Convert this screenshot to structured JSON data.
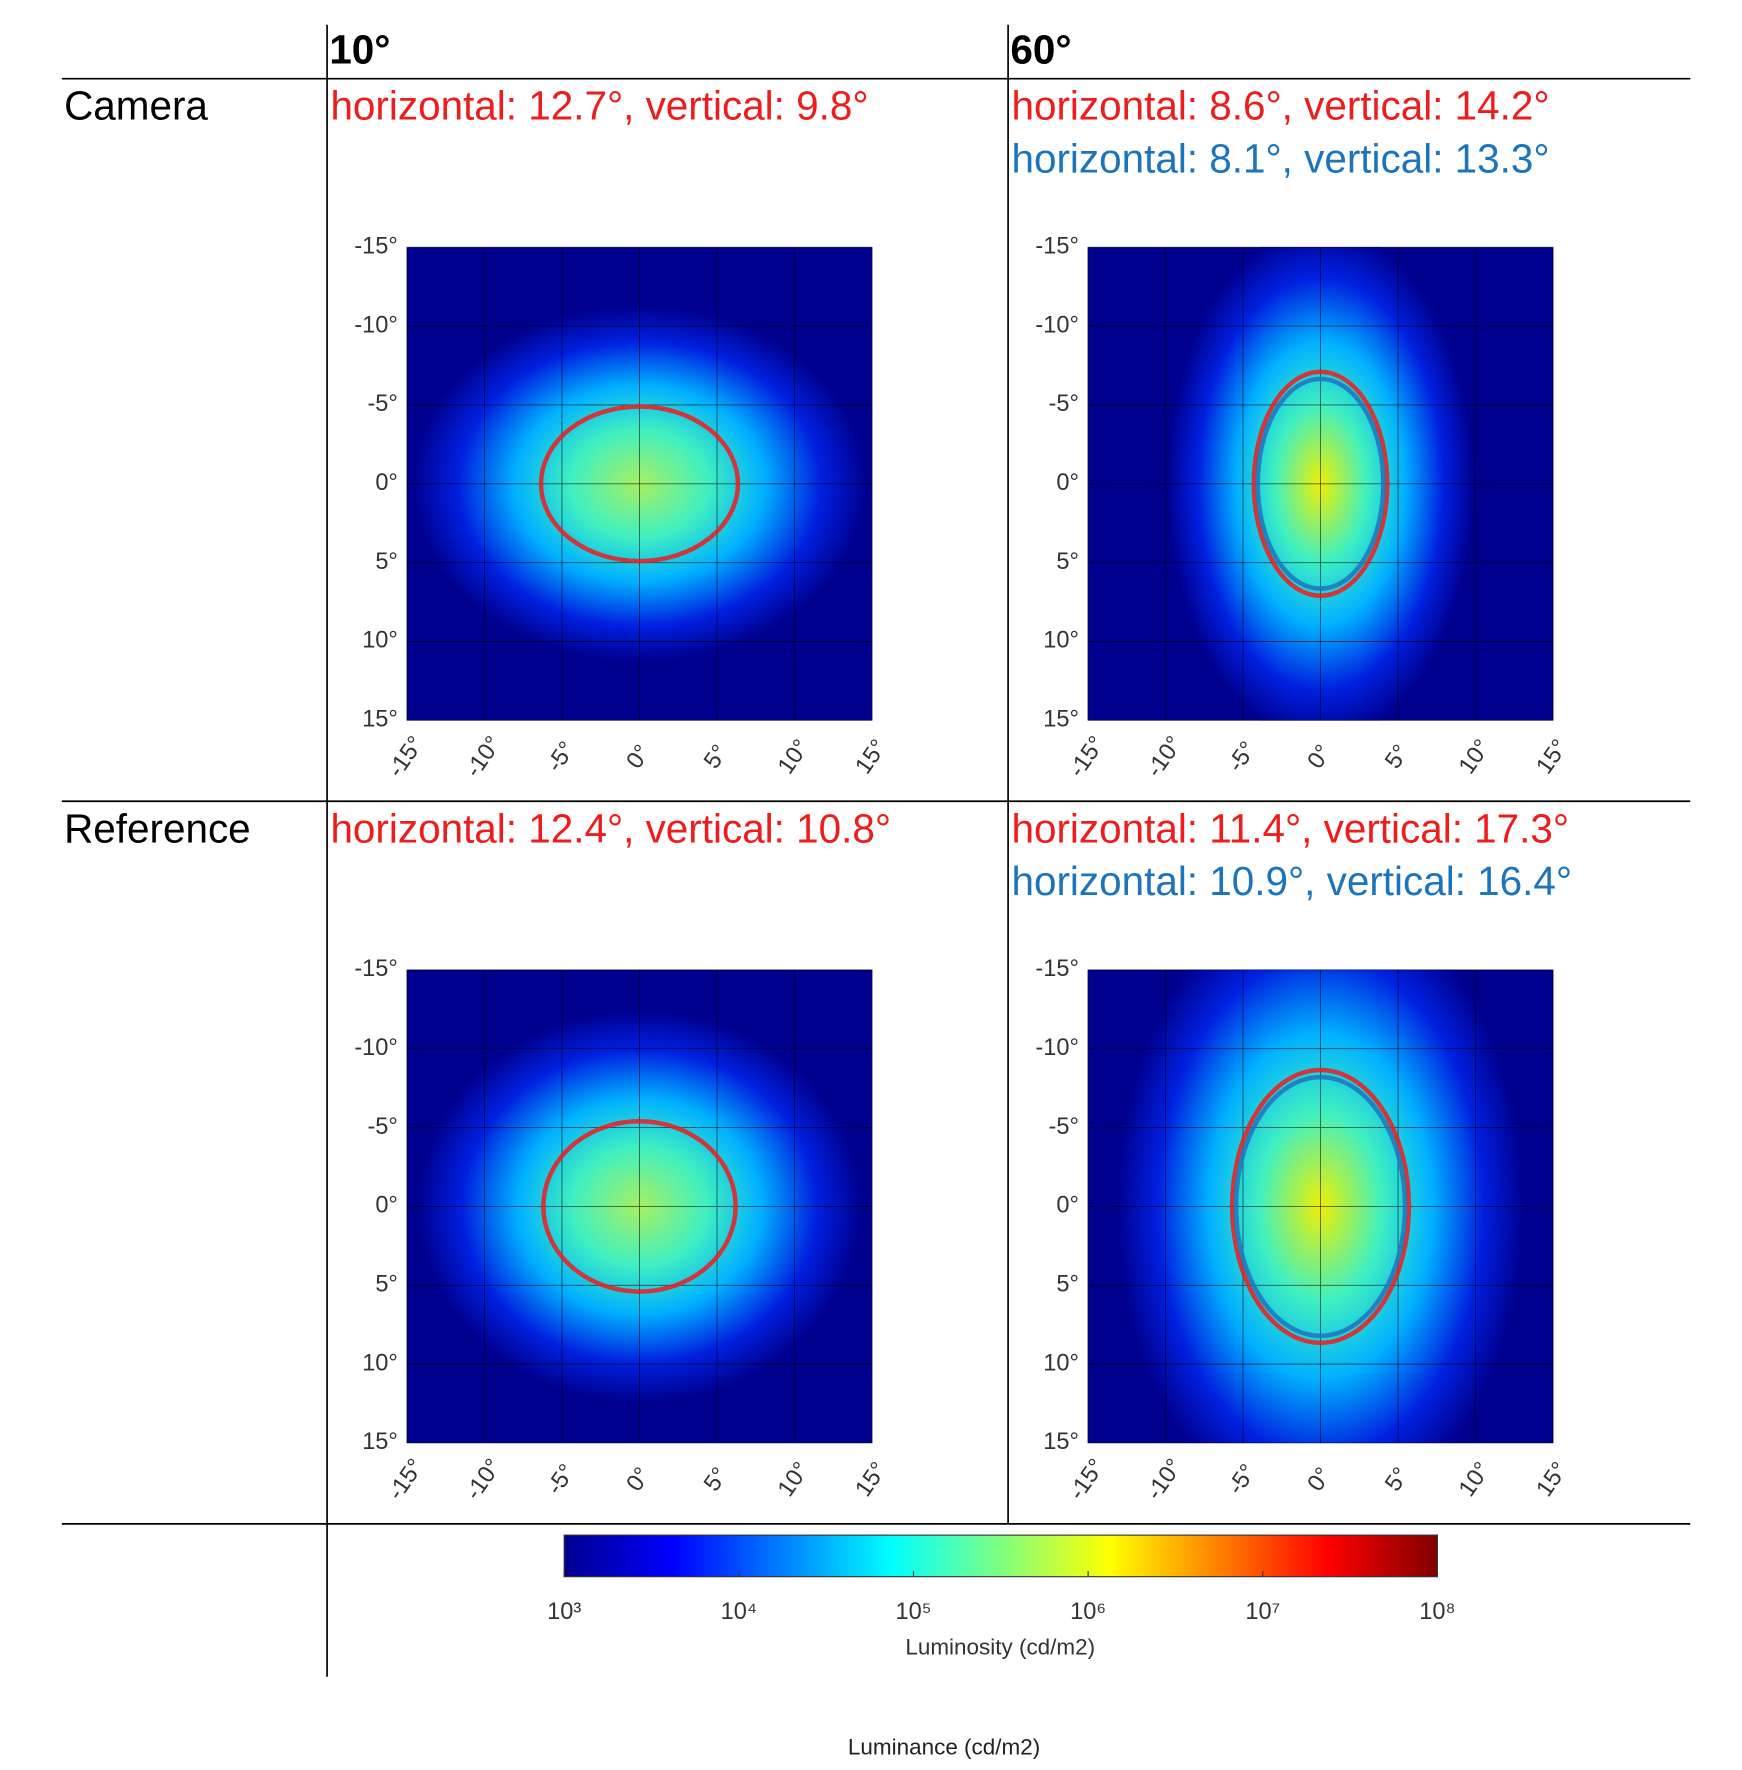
{
  "header": {
    "columns": [
      "10°",
      "60°"
    ]
  },
  "rows": [
    {
      "label": "Camera",
      "cells": [
        {
          "annotations": [
            {
              "text": "horizontal: 12.7°, vertical: 9.8°",
              "horizontal": 12.7,
              "vertical": 9.8,
              "color": "#ee1c1c"
            }
          ]
        },
        {
          "annotations": [
            {
              "text": "horizontal: 8.6°, vertical: 14.2°",
              "horizontal": 8.6,
              "vertical": 14.2,
              "color": "#ee1c1c"
            },
            {
              "text": "horizontal: 8.1°, vertical: 13.3°",
              "horizontal": 8.1,
              "vertical": 13.3,
              "color": "#1c75bc"
            }
          ]
        }
      ]
    },
    {
      "label": "Reference",
      "cells": [
        {
          "annotations": [
            {
              "text": "horizontal: 12.4°, vertical: 10.8°",
              "horizontal": 12.4,
              "vertical": 10.8,
              "color": "#ee1c1c"
            }
          ]
        },
        {
          "annotations": [
            {
              "text": "horizontal: 11.4°, vertical: 17.3°",
              "horizontal": 11.4,
              "vertical": 17.3,
              "color": "#ee1c1c"
            },
            {
              "text": "horizontal: 10.9°, vertical: 16.4°",
              "horizontal": 10.9,
              "vertical": 16.4,
              "color": "#1c75bc"
            }
          ]
        }
      ]
    }
  ],
  "axes": {
    "xlim": [
      -15,
      15
    ],
    "ylim": [
      -15,
      15
    ],
    "xticks": [
      {
        "value": -15,
        "label": "-15°"
      },
      {
        "value": -10,
        "label": "-10°"
      },
      {
        "value": -5,
        "label": "-5°"
      },
      {
        "value": 0,
        "label": "0°"
      },
      {
        "value": 5,
        "label": "5°"
      },
      {
        "value": 10,
        "label": "10°"
      },
      {
        "value": 15,
        "label": "15°"
      }
    ],
    "yticks": [
      {
        "value": -15,
        "label": "-15°"
      },
      {
        "value": -10,
        "label": "-10°"
      },
      {
        "value": -5,
        "label": "-5°"
      },
      {
        "value": 0,
        "label": "0°"
      },
      {
        "value": 5,
        "label": "5°"
      },
      {
        "value": 10,
        "label": "10°"
      },
      {
        "value": 15,
        "label": "15°"
      }
    ]
  },
  "colorbar": {
    "lim": [
      1000,
      100000000
    ],
    "log": true,
    "ticks": [
      {
        "value": 1000,
        "label": "10³"
      },
      {
        "value": 10000,
        "label": "10⁴"
      },
      {
        "value": 100000,
        "label": "10⁵"
      },
      {
        "value": 1000000,
        "label": "10⁶"
      },
      {
        "value": 10000000,
        "label": "10⁷"
      },
      {
        "value": 100000000,
        "label": "10⁸"
      }
    ],
    "label": "Luminosity (cd/m2)"
  },
  "footer": "Luminance (cd/m2)"
}
